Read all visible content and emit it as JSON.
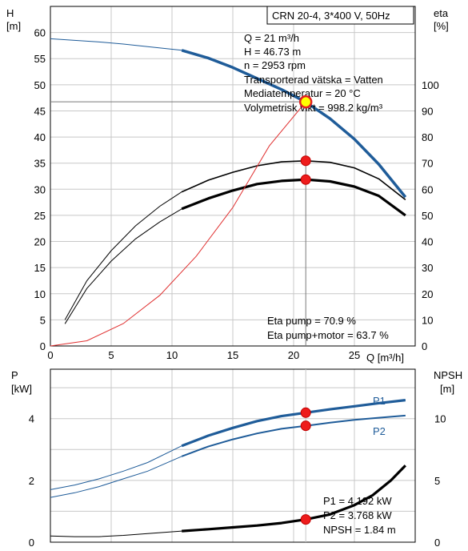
{
  "chart_data": [
    {
      "type": "line",
      "title": "CRN 20-4, 3*400 V, 50Hz",
      "xlabel": "Q [m³/h]",
      "ylabel_left_name": "H",
      "ylabel_left_unit": "[m]",
      "ylabel_right_name": "eta",
      "ylabel_right_unit": "[%]",
      "xlim": [
        0,
        30
      ],
      "ylim_left": [
        0,
        65
      ],
      "ylim_right": [
        0,
        130
      ],
      "x_ticks": [
        "0",
        "5",
        "10",
        "15",
        "20",
        "25"
      ],
      "y_left_ticks": [
        "0",
        "5",
        "10",
        "15",
        "20",
        "25",
        "30",
        "35",
        "40",
        "45",
        "50",
        "55",
        "60"
      ],
      "y_right_ticks": [
        "0",
        "10",
        "20",
        "30",
        "40",
        "50",
        "60",
        "70",
        "80",
        "90",
        "100"
      ],
      "grid": true,
      "series": [
        {
          "axis": "left",
          "color": "#1f5c99",
          "style": "head",
          "x": [
            0,
            2,
            4,
            6,
            8,
            10.8,
            13,
            15,
            17,
            19,
            21,
            23,
            25,
            27,
            29.2
          ],
          "values": [
            58.8,
            58.5,
            58.2,
            57.8,
            57.3,
            56.6,
            55.1,
            53.3,
            51.2,
            49.1,
            46.7,
            43.5,
            39.6,
            34.8,
            28.5
          ]
        },
        {
          "axis": "right",
          "color": "#000000",
          "style": "eta-pump",
          "x": [
            1.2,
            3,
            5,
            7,
            9,
            10.8,
            13,
            15,
            17,
            19,
            21,
            23,
            25,
            27,
            29.2
          ],
          "values": [
            10,
            25,
            36.5,
            46,
            53.5,
            59,
            63.5,
            66.5,
            69,
            70.5,
            70.9,
            70.3,
            68.2,
            64,
            56
          ]
        },
        {
          "axis": "right",
          "color": "#000000",
          "style": "eta-pump-motor",
          "x": [
            1.2,
            3,
            5,
            7,
            9,
            10.8,
            13,
            15,
            17,
            19,
            21,
            23,
            25,
            27,
            29.2
          ],
          "values": [
            8.5,
            22,
            32.5,
            41,
            47.5,
            52.5,
            56.5,
            59.5,
            62,
            63.2,
            63.7,
            63,
            61,
            57.5,
            50
          ]
        },
        {
          "axis": "left",
          "color": "#e03030",
          "style": "system",
          "x": [
            0,
            3,
            6,
            9,
            12,
            15,
            18,
            21
          ],
          "values": [
            0,
            1,
            4.3,
            9.7,
            17.2,
            26.5,
            38.3,
            46.73
          ]
        }
      ],
      "points": [
        {
          "x": 21,
          "y": 46.73,
          "axis": "left",
          "kind": "duty"
        },
        {
          "x": 21,
          "y": 70.9,
          "axis": "right",
          "kind": "eta-pump"
        },
        {
          "x": 21,
          "y": 63.7,
          "axis": "right",
          "kind": "eta-pump+motor"
        }
      ],
      "annotations": [
        "Q = 21 m³/h",
        "H = 46.73 m",
        "n = 2953 rpm",
        "Transporterad vätska = Vatten",
        "Mediatemperatur = 20 °C",
        "Volymetrisk vikt = 998.2 kg/m³"
      ],
      "annotations_bottom": [
        "Eta pump = 70.9 %",
        "Eta pump+motor = 63.7 %"
      ]
    },
    {
      "type": "line",
      "ylabel_left_name": "P",
      "ylabel_left_unit": "[kW]",
      "ylabel_right_name": "NPSH",
      "ylabel_right_unit": "[m]",
      "xlim": [
        0,
        30
      ],
      "ylim_left": [
        0,
        5.6
      ],
      "ylim_right": [
        0,
        14
      ],
      "y_left_ticks": [
        "0",
        "2",
        "4"
      ],
      "y_right_ticks": [
        "0",
        "5",
        "10"
      ],
      "grid": true,
      "series": [
        {
          "name": "P1",
          "axis": "left",
          "color": "#1f5c99",
          "style": "p1",
          "x": [
            0,
            2,
            4,
            6,
            8,
            10.8,
            13,
            15,
            17,
            19,
            21,
            23,
            25,
            27,
            29.2
          ],
          "values": [
            1.7,
            1.85,
            2.05,
            2.3,
            2.58,
            3.12,
            3.45,
            3.7,
            3.92,
            4.08,
            4.192,
            4.3,
            4.4,
            4.5,
            4.6
          ]
        },
        {
          "name": "P2",
          "axis": "left",
          "color": "#1f5c99",
          "style": "p2",
          "x": [
            0,
            2,
            4,
            6,
            8,
            10.8,
            13,
            15,
            17,
            19,
            21,
            23,
            25,
            27,
            29.2
          ],
          "values": [
            1.45,
            1.6,
            1.8,
            2.05,
            2.3,
            2.78,
            3.1,
            3.33,
            3.52,
            3.67,
            3.768,
            3.87,
            3.96,
            4.03,
            4.1
          ]
        },
        {
          "axis": "right",
          "color": "#000000",
          "style": "npsh",
          "x": [
            0,
            2,
            4,
            6,
            8,
            10.8,
            13,
            15,
            17,
            19,
            21,
            23,
            25,
            26.5,
            28,
            29.2
          ],
          "values": [
            0.5,
            0.45,
            0.45,
            0.55,
            0.7,
            0.9,
            1.05,
            1.2,
            1.35,
            1.55,
            1.84,
            2.25,
            3.0,
            3.8,
            5.0,
            6.2
          ]
        }
      ],
      "points": [
        {
          "x": 21,
          "y": 4.192,
          "axis": "left",
          "kind": "P1"
        },
        {
          "x": 21,
          "y": 3.768,
          "axis": "left",
          "kind": "P2"
        },
        {
          "x": 21,
          "y": 1.84,
          "axis": "right",
          "kind": "NPSH"
        }
      ],
      "annotations": [
        "P1 = 4.192 kW",
        "P2 = 3.768 kW",
        "NPSH = 1.84 m"
      ]
    }
  ]
}
